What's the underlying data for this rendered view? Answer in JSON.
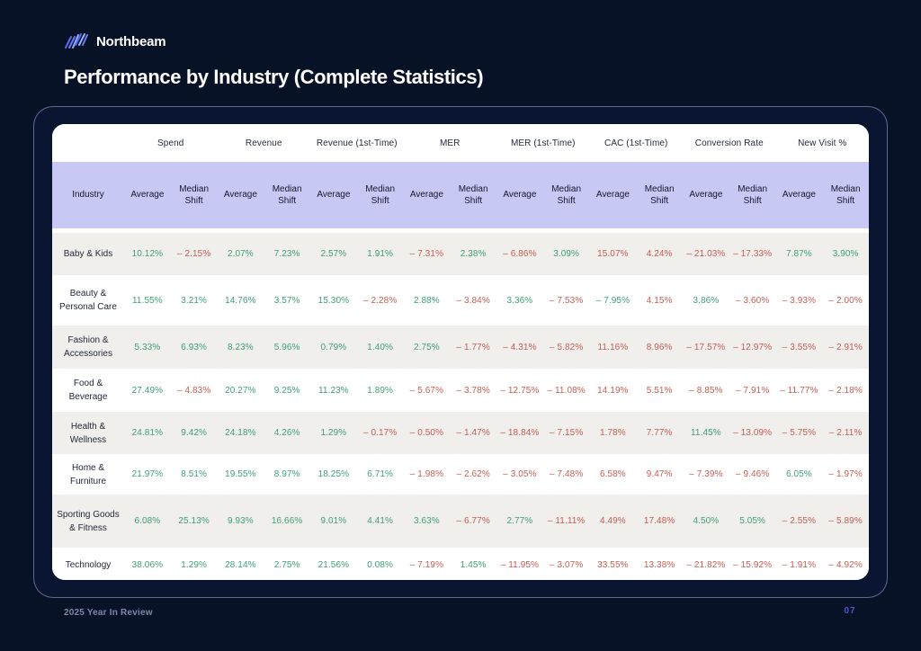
{
  "page": {
    "brand": "Northbeam",
    "title": "Performance by Industry (Complete Statistics)",
    "footer_left": "2025 Year In Review",
    "page_number": "07"
  },
  "colors": {
    "positive": "#3fa077",
    "negative": "#c75d52",
    "lavender_band": "#c7c9f4",
    "row_alt": "#f0efec",
    "background": "#081226",
    "brand_accent": "#5b68f6"
  },
  "table": {
    "industry_header": "Industry",
    "sub_headers": [
      "Average",
      "Median Shift"
    ],
    "groups": [
      "Spend",
      "Revenue",
      "Revenue (1st-Time)",
      "MER",
      "MER (1st-Time)",
      "CAC (1st-Time)",
      "Conversion Rate",
      "New Visit %"
    ],
    "rows": [
      {
        "label": "Baby & Kids",
        "cells": [
          [
            "10.12%",
            "p"
          ],
          [
            "– 2.15%",
            "n"
          ],
          [
            "2.07%",
            "p"
          ],
          [
            "7.23%",
            "p"
          ],
          [
            "2.57%",
            "p"
          ],
          [
            "1.91%",
            "p"
          ],
          [
            "– 7.31%",
            "n"
          ],
          [
            "2.38%",
            "p"
          ],
          [
            "– 6.86%",
            "n"
          ],
          [
            "3.09%",
            "p"
          ],
          [
            "15.07%",
            "n"
          ],
          [
            "4.24%",
            "n"
          ],
          [
            "– 21.03%",
            "n"
          ],
          [
            "– 17.33%",
            "n"
          ],
          [
            "7.87%",
            "p"
          ],
          [
            "3.90%",
            "p"
          ]
        ]
      },
      {
        "label": "Beauty & Personal Care",
        "cells": [
          [
            "11.55%",
            "p"
          ],
          [
            "3.21%",
            "p"
          ],
          [
            "14.76%",
            "p"
          ],
          [
            "3.57%",
            "p"
          ],
          [
            "15.30%",
            "p"
          ],
          [
            "– 2.28%",
            "n"
          ],
          [
            "2.88%",
            "p"
          ],
          [
            "– 3.84%",
            "n"
          ],
          [
            "3.36%",
            "p"
          ],
          [
            "– 7.53%",
            "n"
          ],
          [
            "– 7.95%",
            "p"
          ],
          [
            "4.15%",
            "n"
          ],
          [
            "3.86%",
            "p"
          ],
          [
            "– 3.60%",
            "n"
          ],
          [
            "– 3.93%",
            "n"
          ],
          [
            "– 2.00%",
            "n"
          ]
        ]
      },
      {
        "label": "Fashion & Accessories",
        "cells": [
          [
            "5.33%",
            "p"
          ],
          [
            "6.93%",
            "p"
          ],
          [
            "8.23%",
            "p"
          ],
          [
            "5.96%",
            "p"
          ],
          [
            "0.79%",
            "p"
          ],
          [
            "1.40%",
            "p"
          ],
          [
            "2.75%",
            "p"
          ],
          [
            "– 1.77%",
            "n"
          ],
          [
            "– 4.31%",
            "n"
          ],
          [
            "– 5.82%",
            "n"
          ],
          [
            "11.16%",
            "n"
          ],
          [
            "8.96%",
            "n"
          ],
          [
            "– 17.57%",
            "n"
          ],
          [
            "– 12.97%",
            "n"
          ],
          [
            "– 3.55%",
            "n"
          ],
          [
            "– 2.91%",
            "n"
          ]
        ]
      },
      {
        "label": "Food & Beverage",
        "cells": [
          [
            "27.49%",
            "p"
          ],
          [
            "– 4.83%",
            "n"
          ],
          [
            "20.27%",
            "p"
          ],
          [
            "9.25%",
            "p"
          ],
          [
            "11.23%",
            "p"
          ],
          [
            "1.89%",
            "p"
          ],
          [
            "– 5.67%",
            "n"
          ],
          [
            "– 3.78%",
            "n"
          ],
          [
            "– 12.75%",
            "n"
          ],
          [
            "– 11.08%",
            "n"
          ],
          [
            "14.19%",
            "n"
          ],
          [
            "5.51%",
            "n"
          ],
          [
            "– 8.85%",
            "n"
          ],
          [
            "– 7.91%",
            "n"
          ],
          [
            "– 11.77%",
            "n"
          ],
          [
            "– 2.18%",
            "n"
          ]
        ]
      },
      {
        "label": "Health & Wellness",
        "cells": [
          [
            "24.81%",
            "p"
          ],
          [
            "9.42%",
            "p"
          ],
          [
            "24.18%",
            "p"
          ],
          [
            "4.26%",
            "p"
          ],
          [
            "1.29%",
            "p"
          ],
          [
            "– 0.17%",
            "n"
          ],
          [
            "– 0.50%",
            "n"
          ],
          [
            "– 1.47%",
            "n"
          ],
          [
            "– 18.84%",
            "n"
          ],
          [
            "– 7.15%",
            "n"
          ],
          [
            "1.78%",
            "n"
          ],
          [
            "7.77%",
            "n"
          ],
          [
            "11.45%",
            "p"
          ],
          [
            "– 13.09%",
            "n"
          ],
          [
            "– 5.75%",
            "n"
          ],
          [
            "– 2.11%",
            "n"
          ]
        ]
      },
      {
        "label": "Home & Furniture",
        "cells": [
          [
            "21.97%",
            "p"
          ],
          [
            "8.51%",
            "p"
          ],
          [
            "19.55%",
            "p"
          ],
          [
            "8.97%",
            "p"
          ],
          [
            "18.25%",
            "p"
          ],
          [
            "6.71%",
            "p"
          ],
          [
            "– 1.98%",
            "n"
          ],
          [
            "– 2.62%",
            "n"
          ],
          [
            "– 3.05%",
            "n"
          ],
          [
            "– 7.48%",
            "n"
          ],
          [
            "6.58%",
            "n"
          ],
          [
            "9.47%",
            "n"
          ],
          [
            "– 7.39%",
            "n"
          ],
          [
            "– 9.46%",
            "n"
          ],
          [
            "6.05%",
            "p"
          ],
          [
            "– 1.97%",
            "n"
          ]
        ]
      },
      {
        "label": "Sporting Goods & Fitness",
        "cells": [
          [
            "6.08%",
            "p"
          ],
          [
            "25.13%",
            "p"
          ],
          [
            "9.93%",
            "p"
          ],
          [
            "16.66%",
            "p"
          ],
          [
            "9.01%",
            "p"
          ],
          [
            "4.41%",
            "p"
          ],
          [
            "3.63%",
            "p"
          ],
          [
            "– 6.77%",
            "n"
          ],
          [
            "2.77%",
            "p"
          ],
          [
            "– 11.11%",
            "n"
          ],
          [
            "4.49%",
            "n"
          ],
          [
            "17.48%",
            "n"
          ],
          [
            "4.50%",
            "p"
          ],
          [
            "5.05%",
            "p"
          ],
          [
            "– 2.55%",
            "n"
          ],
          [
            "– 5.89%",
            "n"
          ]
        ]
      },
      {
        "label": "Technology",
        "cells": [
          [
            "38.06%",
            "p"
          ],
          [
            "1.29%",
            "p"
          ],
          [
            "28.14%",
            "p"
          ],
          [
            "2.75%",
            "p"
          ],
          [
            "21.56%",
            "p"
          ],
          [
            "0.08%",
            "p"
          ],
          [
            "– 7.19%",
            "n"
          ],
          [
            "1.45%",
            "p"
          ],
          [
            "– 11.95%",
            "n"
          ],
          [
            "– 3.07%",
            "n"
          ],
          [
            "33.55%",
            "n"
          ],
          [
            "13.38%",
            "n"
          ],
          [
            "– 21.82%",
            "n"
          ],
          [
            "– 15.92%",
            "n"
          ],
          [
            "– 1.91%",
            "n"
          ],
          [
            "– 4.92%",
            "n"
          ]
        ]
      }
    ]
  }
}
